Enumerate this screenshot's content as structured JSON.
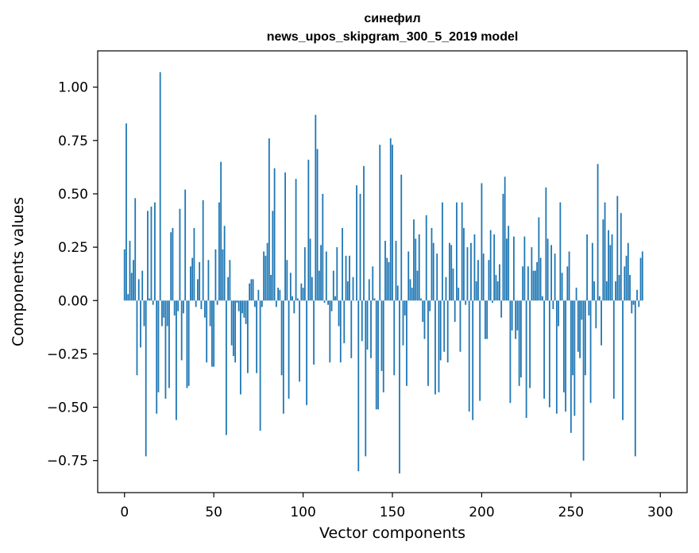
{
  "chart_data": {
    "type": "bar",
    "title": "синефил",
    "subtitle": "news_upos_skipgram_300_5_2019 model",
    "xlabel": "Vector components",
    "ylabel": "Components values",
    "xlim": [
      -15,
      315
    ],
    "ylim": [
      -0.9,
      1.17
    ],
    "xticks": [
      0,
      50,
      100,
      150,
      200,
      250,
      300
    ],
    "xtick_labels": [
      "0",
      "50",
      "100",
      "150",
      "200",
      "250",
      "300"
    ],
    "yticks": [
      -0.75,
      -0.5,
      -0.25,
      0.0,
      0.25,
      0.5,
      0.75,
      1.0
    ],
    "ytick_labels": [
      "−0.75",
      "−0.50",
      "−0.25",
      "0.00",
      "0.25",
      "0.50",
      "0.75",
      "1.00"
    ],
    "grid": false,
    "bar_color": "#1f77b4",
    "values": [
      0.24,
      0.83,
      0.03,
      0.28,
      0.13,
      0.19,
      0.48,
      -0.35,
      0.1,
      -0.22,
      0.14,
      -0.12,
      -0.73,
      0.42,
      0.01,
      0.44,
      -0.02,
      0.46,
      -0.53,
      -0.43,
      1.07,
      -0.12,
      -0.08,
      -0.46,
      -0.12,
      -0.41,
      0.32,
      0.34,
      -0.07,
      -0.56,
      -0.05,
      0.43,
      -0.28,
      -0.06,
      0.52,
      -0.41,
      -0.4,
      0.16,
      0.2,
      0.34,
      -0.03,
      0.1,
      0.18,
      -0.04,
      0.47,
      -0.08,
      -0.29,
      0.19,
      -0.12,
      -0.31,
      -0.31,
      0.24,
      -0.02,
      0.46,
      0.65,
      0.24,
      0.35,
      -0.63,
      0.11,
      0.19,
      -0.21,
      -0.26,
      -0.29,
      -0.01,
      -0.05,
      -0.44,
      -0.06,
      -0.08,
      -0.11,
      -0.34,
      0.08,
      0.1,
      0.1,
      -0.03,
      -0.34,
      0.05,
      -0.61,
      -0.03,
      0.23,
      0.21,
      0.27,
      0.76,
      0.12,
      0.42,
      0.62,
      -0.03,
      0.06,
      0.05,
      -0.35,
      -0.53,
      0.6,
      0.19,
      -0.46,
      0.13,
      0.02,
      -0.06,
      0.57,
      0.01,
      -0.38,
      0.08,
      0.06,
      0.25,
      -0.49,
      0.66,
      0.29,
      0.11,
      -0.3,
      0.87,
      0.71,
      0.14,
      0.26,
      0.5,
      -0.01,
      0.23,
      -0.02,
      -0.29,
      -0.05,
      0.14,
      0.02,
      0.25,
      -0.12,
      -0.29,
      0.34,
      -0.2,
      0.21,
      0.09,
      0.21,
      -0.27,
      0.11,
      0.0,
      0.54,
      -0.8,
      0.5,
      -0.19,
      0.63,
      -0.73,
      -0.23,
      0.1,
      -0.27,
      0.16,
      0.01,
      -0.51,
      -0.51,
      0.73,
      -0.33,
      -0.43,
      0.28,
      0.2,
      0.18,
      0.76,
      0.73,
      -0.35,
      0.28,
      0.07,
      -0.81,
      0.59,
      -0.21,
      -0.07,
      -0.4,
      0.23,
      0.1,
      0.06,
      0.38,
      0.29,
      0.14,
      0.31,
      0.01,
      -0.1,
      -0.18,
      0.4,
      -0.4,
      -0.05,
      0.34,
      0.27,
      -0.44,
      0.22,
      -0.43,
      -0.28,
      0.46,
      -0.24,
      0.11,
      -0.29,
      0.27,
      0.26,
      0.15,
      -0.1,
      0.46,
      0.06,
      -0.24,
      0.46,
      0.34,
      -0.02,
      0.25,
      -0.52,
      0.27,
      -0.56,
      0.31,
      0.09,
      0.19,
      -0.47,
      0.55,
      0.22,
      -0.18,
      -0.18,
      0.19,
      0.33,
      -0.01,
      0.31,
      0.12,
      0.09,
      0.17,
      -0.08,
      0.5,
      0.58,
      0.29,
      0.35,
      -0.48,
      -0.14,
      0.3,
      -0.18,
      -0.14,
      -0.4,
      -0.36,
      0.16,
      0.3,
      -0.55,
      0.16,
      -0.41,
      0.25,
      0.14,
      0.14,
      0.18,
      0.39,
      0.2,
      0.02,
      -0.46,
      0.53,
      0.29,
      -0.5,
      0.26,
      -0.04,
      0.22,
      -0.53,
      -0.12,
      0.46,
      0.13,
      -0.43,
      -0.52,
      0.16,
      0.23,
      -0.62,
      -0.35,
      -0.54,
      0.06,
      -0.24,
      -0.27,
      -0.09,
      -0.75,
      -0.35,
      0.31,
      -0.07,
      -0.48,
      0.27,
      0.09,
      -0.13,
      0.64,
      0.02,
      -0.21,
      0.38,
      0.46,
      0.09,
      0.33,
      0.26,
      0.31,
      -0.46,
      0.09,
      0.49,
      0.12,
      0.41,
      -0.56,
      0.16,
      0.21,
      0.27,
      0.12,
      -0.06,
      -0.02,
      -0.73,
      0.05,
      -0.03,
      0.2,
      0.23
    ]
  }
}
